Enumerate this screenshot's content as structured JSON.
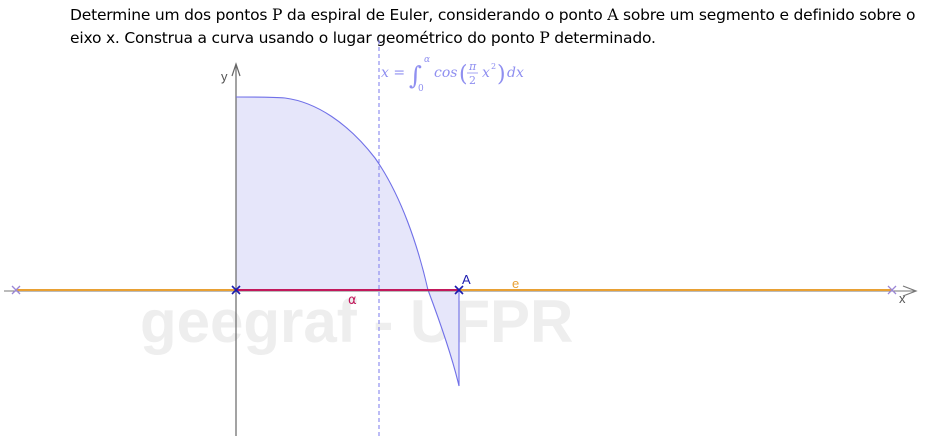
{
  "instruction": {
    "part1": "Determine um dos pontos ",
    "var_p1": "P",
    "part2": " da espiral de Euler, considerando o ponto ",
    "var_a": "A",
    "part3": " sobre um segmento e definido sobre o eixo x. Construa a curva usando o lugar geométrico do ponto ",
    "var_p2": "P",
    "part4": " determinado."
  },
  "formula": {
    "lhs": "x =",
    "integral_sign": "∫",
    "upper_limit": "α",
    "lower_limit": "0",
    "func": "cos",
    "pi": "π",
    "two": "2",
    "var": "x",
    "exponent": "2",
    "dx": "dx"
  },
  "axes": {
    "x_label": "x",
    "y_label": "y"
  },
  "labels": {
    "point_a": "A",
    "segment_alpha": "α",
    "line_e": "e"
  },
  "watermark": "geegraf - UFPR",
  "colors": {
    "line_e": "#e8a033",
    "segment_alpha": "#c2185b",
    "curve": "#7070e8",
    "fill": "#e6e6fa",
    "point": "#1b1bb0",
    "point_end": "#9b86d6",
    "dashed_line": "#8f8ff0",
    "axis": "#666666",
    "watermark": "#eeeeee"
  }
}
